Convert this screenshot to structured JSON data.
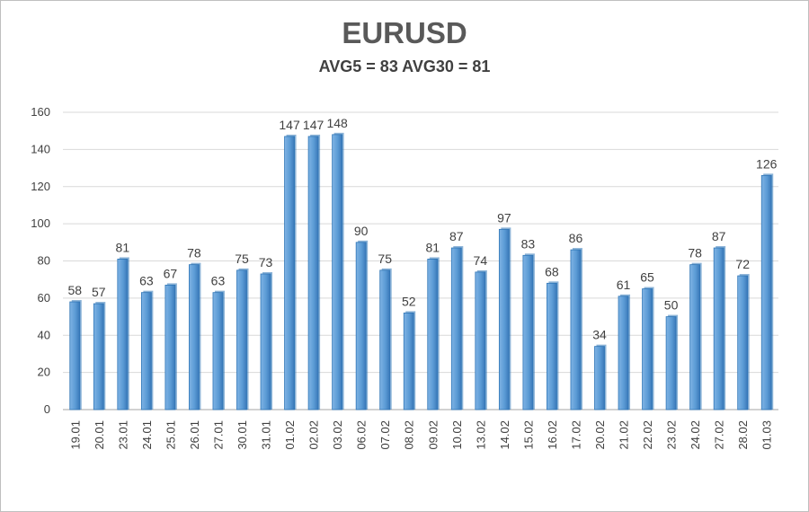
{
  "chart_data": {
    "type": "bar",
    "title": "EURUSD",
    "subtitle": "AVG5 = 83 AVG30 = 81",
    "xlabel": "",
    "ylabel": "",
    "ylim": [
      0,
      160
    ],
    "yticks": [
      0,
      20,
      40,
      60,
      80,
      100,
      120,
      140,
      160
    ],
    "grid": true,
    "legend": "none",
    "categories": [
      "19.01",
      "20.01",
      "23.01",
      "24.01",
      "25.01",
      "26.01",
      "27.01",
      "30.01",
      "31.01",
      "01.02",
      "02.02",
      "03.02",
      "06.02",
      "07.02",
      "08.02",
      "09.02",
      "10.02",
      "13.02",
      "14.02",
      "15.02",
      "16.02",
      "17.02",
      "20.02",
      "21.02",
      "22.02",
      "23.02",
      "24.02",
      "27.02",
      "28.02",
      "01.03"
    ],
    "values": [
      58,
      57,
      81,
      63,
      67,
      78,
      63,
      75,
      73,
      147,
      147,
      148,
      90,
      75,
      52,
      81,
      87,
      74,
      97,
      83,
      68,
      86,
      34,
      61,
      65,
      50,
      78,
      87,
      72,
      126
    ],
    "bar_color": "#5b9bd5",
    "bar_edge_color": "#2e75b6"
  }
}
